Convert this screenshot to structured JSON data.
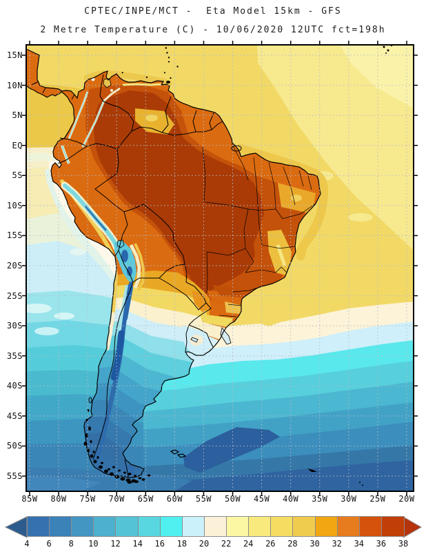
{
  "header": {
    "title_line1": "CPTEC/INPE/MCT -  Eta Model 15km - GFS",
    "title_line2": "2 Metre Temperature (C) - 10/06/2020 12UTC fct=198h"
  },
  "map": {
    "y_axis_labels": [
      "15N",
      "10N",
      "5N",
      "EQ",
      "5S",
      "10S",
      "15S",
      "20S",
      "25S",
      "30S",
      "35S",
      "40S",
      "45S",
      "50S",
      "55S"
    ],
    "x_axis_labels": [
      "85W",
      "80W",
      "75W",
      "70W",
      "65W",
      "60W",
      "55W",
      "50W",
      "45W",
      "40W",
      "35W",
      "30W",
      "25W",
      "20W"
    ],
    "grid_color": "#b3bccb",
    "frame_color": "#000000"
  },
  "colorbar": {
    "tick_labels": [
      "4",
      "6",
      "8",
      "10",
      "12",
      "14",
      "16",
      "18",
      "20",
      "22",
      "24",
      "26",
      "28",
      "30",
      "32",
      "34",
      "36",
      "38"
    ],
    "segment_colors": [
      "#3571af",
      "#3b82b9",
      "#4396c2",
      "#4db0cd",
      "#55c3d6",
      "#59d7e0",
      "#4ff0ef",
      "#cbf1fb",
      "#fbf1d8",
      "#fcf7a3",
      "#f9ea7e",
      "#f5dd62",
      "#f0cc4e",
      "#f0a712",
      "#e67c1d",
      "#d5520d",
      "#c23e07"
    ],
    "left_arrow_color": "#2c5c8e",
    "right_arrow_color": "#b5340b",
    "units": "C"
  }
}
